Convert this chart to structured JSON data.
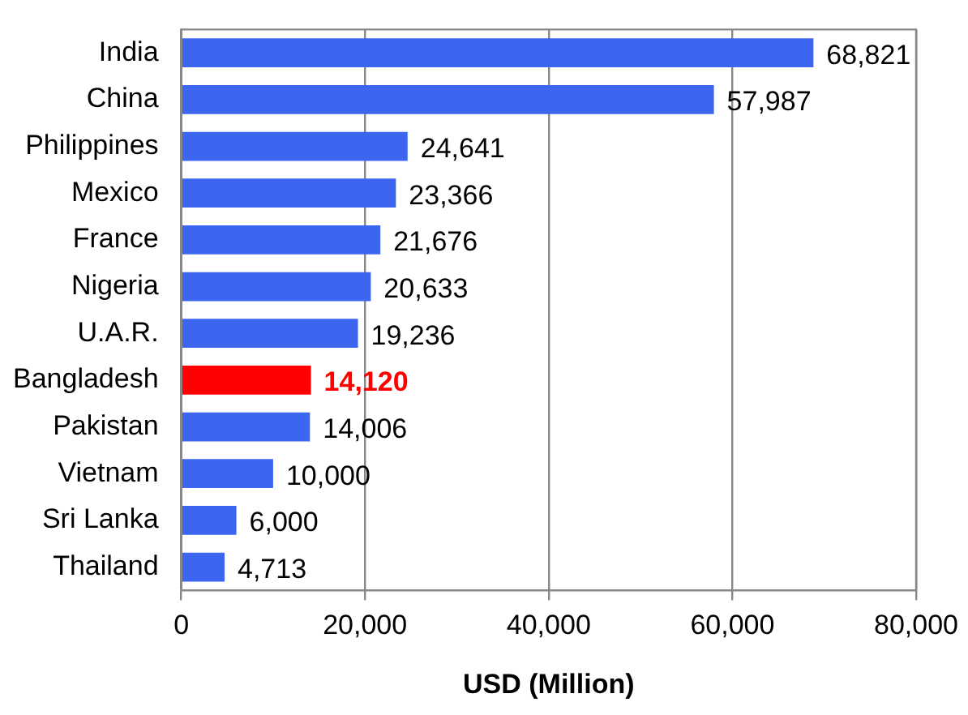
{
  "chart_data": {
    "type": "bar",
    "orientation": "horizontal",
    "xlabel": "USD (Million)",
    "categories": [
      "India",
      "China",
      "Philippines",
      "Mexico",
      "France",
      "Nigeria",
      "U.A.R.",
      "Bangladesh",
      "Pakistan",
      "Vietnam",
      "Sri Lanka",
      "Thailand"
    ],
    "values": [
      68821,
      57987,
      24641,
      23366,
      21676,
      20633,
      19236,
      14120,
      14006,
      10000,
      6000,
      4713
    ],
    "colors": [
      "#3d66f0",
      "#3d66f0",
      "#3d66f0",
      "#3d66f0",
      "#3d66f0",
      "#3d66f0",
      "#3d66f0",
      "#ff0000",
      "#3d66f0",
      "#3d66f0",
      "#3d66f0",
      "#3d66f0"
    ],
    "value_labels": [
      "68,821",
      "57,987",
      "24,641",
      "23,366",
      "21,676",
      "20,633",
      "19,236",
      "14,120",
      "14,006",
      "10,000",
      "6,000",
      "4,713"
    ],
    "xlim": [
      0,
      80000
    ],
    "xticks": [
      0,
      {
        "value": 20000,
        "label": "20,000"
      },
      {
        "value": 40000,
        "label": "40,000"
      },
      {
        "value": 60000,
        "label": "60,000"
      },
      {
        "value": 80000,
        "label": "80,000"
      }
    ],
    "grid": "x",
    "legend": false
  }
}
